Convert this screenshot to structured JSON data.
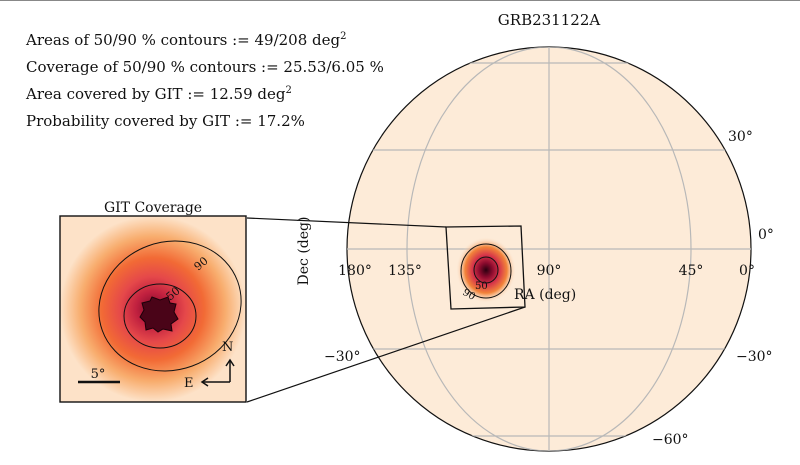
{
  "title": "GRB231122A",
  "stats": [
    {
      "text": "Areas of 50/90 % contours := 49/208 deg",
      "sup": "2"
    },
    {
      "text": "Coverage of 50/90 % contours := 25.53/6.05 %",
      "sup": ""
    },
    {
      "text": "Area covered by GIT := 12.59 deg",
      "sup": "2"
    },
    {
      "text": "Probability covered by GIT := 17.2%",
      "sup": ""
    }
  ],
  "inset": {
    "title": "GIT Coverage",
    "contour_labels": [
      "50",
      "90"
    ],
    "scale_label": "5°",
    "compass": {
      "north": "N",
      "east": "E"
    }
  },
  "main_map": {
    "projection": "mollweide",
    "xlabel": "RA (deg)",
    "ylabel": "Dec (deg)",
    "ra_ticks": [
      "180°",
      "135°",
      "90°",
      "45°",
      "0°"
    ],
    "dec_ticks": [
      "30°",
      "0°",
      "−30°",
      "−60°"
    ],
    "dec_ticks_left": [
      "−30°"
    ],
    "contour_labels": [
      "50",
      "90"
    ],
    "colors": {
      "background": "#fdebd8",
      "grid": "#b8b8b8",
      "probability_peak": "#2a0010",
      "probability_mid": "#e8552b",
      "probability_edge": "#fdebd8"
    }
  }
}
